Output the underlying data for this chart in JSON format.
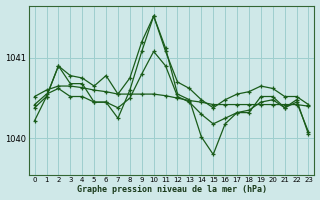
{
  "title": "Graphe pression niveau de la mer (hPa)",
  "background_color": "#cfe8e8",
  "grid_color": "#9ecece",
  "line_color": "#1a5c1a",
  "xlim": [
    -0.5,
    23.5
  ],
  "ylim": [
    1039.55,
    1041.65
  ],
  "ytick_positions": [
    1040.0,
    1041.0
  ],
  "ytick_labels": [
    "1040",
    "1041"
  ],
  "xticks": [
    0,
    1,
    2,
    3,
    4,
    5,
    6,
    7,
    8,
    9,
    10,
    11,
    12,
    13,
    14,
    15,
    16,
    17,
    18,
    19,
    20,
    21,
    22,
    23
  ],
  "series": [
    {
      "x": [
        0,
        1,
        2,
        3,
        4,
        5,
        6,
        7,
        8,
        9,
        10,
        11,
        12,
        13,
        14,
        15,
        16,
        17,
        18,
        19,
        20,
        21,
        22,
        23
      ],
      "y": [
        1040.52,
        1040.6,
        1040.65,
        1040.65,
        1040.63,
        1040.6,
        1040.58,
        1040.55,
        1040.55,
        1040.55,
        1040.55,
        1040.53,
        1040.5,
        1040.47,
        1040.45,
        1040.42,
        1040.42,
        1040.42,
        1040.42,
        1040.42,
        1040.42,
        1040.42,
        1040.42,
        1040.4
      ]
    },
    {
      "x": [
        0,
        1,
        2,
        3,
        4,
        5,
        6,
        7,
        8,
        9,
        10,
        11,
        12,
        13,
        14,
        15,
        16,
        17,
        18,
        19,
        20,
        21,
        22,
        23
      ],
      "y": [
        1040.38,
        1040.52,
        1040.9,
        1040.68,
        1040.68,
        1040.45,
        1040.45,
        1040.25,
        1040.6,
        1041.08,
        1041.52,
        1041.12,
        1040.55,
        1040.48,
        1040.02,
        1039.8,
        1040.18,
        1040.32,
        1040.32,
        1040.52,
        1040.52,
        1040.38,
        1040.48,
        1040.05
      ]
    },
    {
      "x": [
        0,
        1,
        2,
        3,
        4,
        5,
        6,
        7,
        8,
        9,
        10,
        11,
        12,
        13,
        14,
        15,
        16,
        17,
        18,
        19,
        20,
        21,
        22,
        23
      ],
      "y": [
        1040.42,
        1040.55,
        1040.62,
        1040.52,
        1040.52,
        1040.45,
        1040.45,
        1040.38,
        1040.5,
        1040.8,
        1041.08,
        1040.9,
        1040.52,
        1040.45,
        1040.3,
        1040.18,
        1040.25,
        1040.32,
        1040.35,
        1040.45,
        1040.48,
        1040.38,
        1040.45,
        1040.08
      ]
    },
    {
      "x": [
        0,
        1,
        2,
        3,
        4,
        5,
        6,
        7,
        8,
        9,
        10,
        11,
        12,
        13,
        14,
        15,
        16,
        17,
        18,
        19,
        20,
        21,
        22,
        23
      ],
      "y": [
        1040.22,
        1040.52,
        1040.9,
        1040.78,
        1040.75,
        1040.65,
        1040.78,
        1040.55,
        1040.75,
        1041.2,
        1041.52,
        1041.08,
        1040.7,
        1040.62,
        1040.48,
        1040.38,
        1040.48,
        1040.55,
        1040.58,
        1040.65,
        1040.62,
        1040.52,
        1040.52,
        1040.42
      ]
    }
  ]
}
